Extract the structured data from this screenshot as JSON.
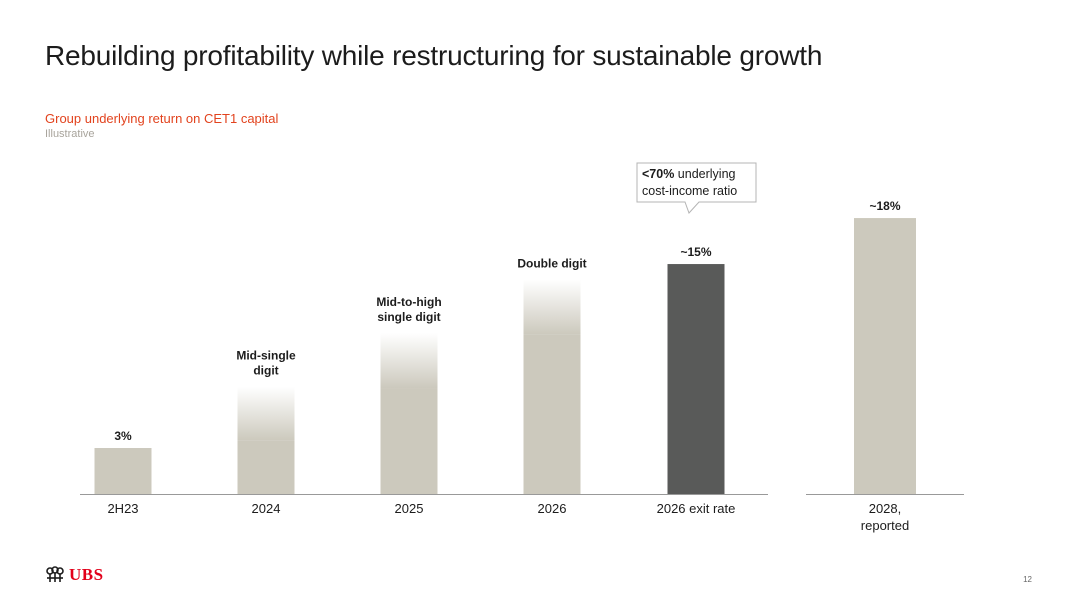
{
  "slide": {
    "title": "Rebuilding profitability while restructuring for sustainable growth",
    "subtitle": "Group underlying return on CET1 capital",
    "note": "Illustrative",
    "page_number": "12",
    "logo_text": "UBS"
  },
  "colors": {
    "bar": "#ccc9bd",
    "highlight_bar": "#595a59",
    "accent": "#e2431e",
    "axis": "#999999"
  },
  "callout": {
    "bold": "<70%",
    "line1_rest": " underlying",
    "line2": "cost-income ratio"
  },
  "chart_data": {
    "type": "bar",
    "title": "Group underlying return on CET1 capital",
    "ylim": [
      0,
      20
    ],
    "groups": [
      {
        "categories": [
          "2H23",
          "2024",
          "2025",
          "2026",
          "2026 exit rate"
        ],
        "values": [
          3,
          7,
          10.5,
          14,
          15
        ],
        "labels": [
          [
            "3%"
          ],
          [
            "Mid-single",
            "digit"
          ],
          [
            "Mid-to-high",
            "single digit"
          ],
          [
            "Double digit"
          ],
          [
            "~15%"
          ]
        ],
        "faded_top": [
          false,
          true,
          true,
          true,
          false
        ],
        "highlight": [
          false,
          false,
          false,
          false,
          true
        ]
      },
      {
        "categories": [
          "2028,\nreported"
        ],
        "values": [
          18
        ],
        "labels": [
          [
            "~18%"
          ]
        ],
        "faded_top": [
          false
        ],
        "highlight": [
          false
        ]
      }
    ]
  }
}
